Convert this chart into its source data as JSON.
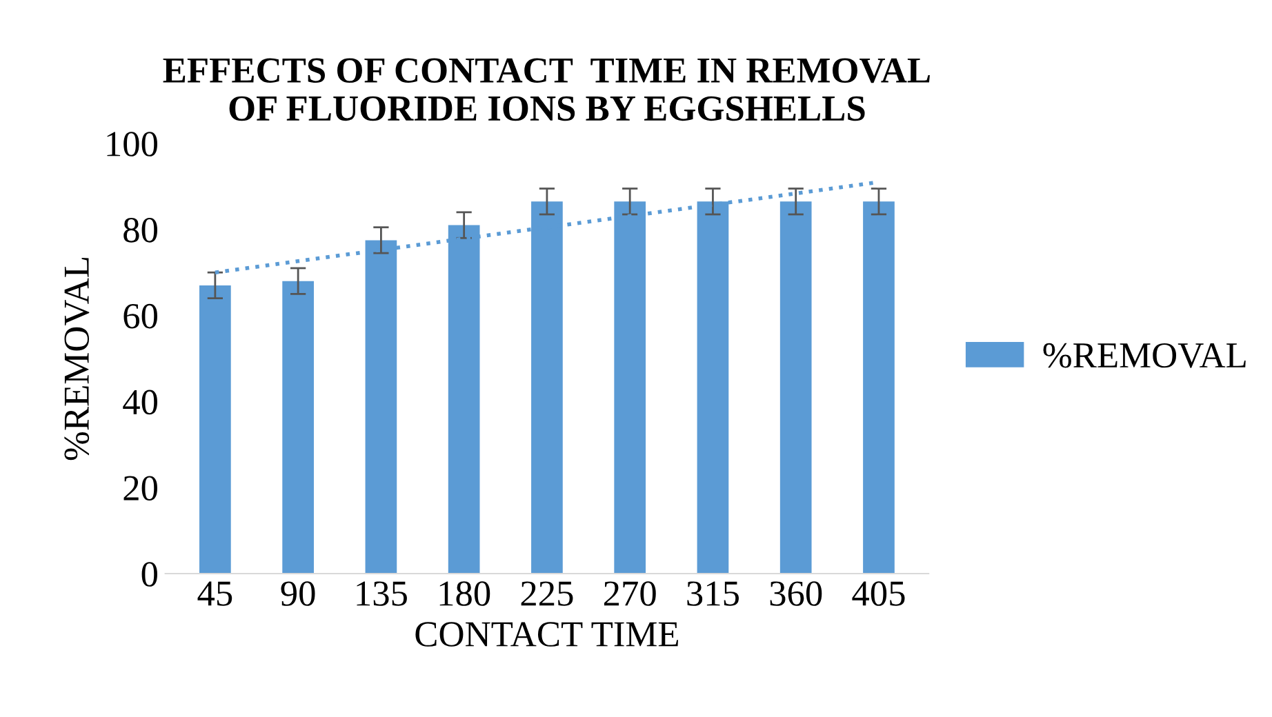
{
  "chart_data": {
    "type": "bar",
    "title": "EFFECTS OF CONTACT  TIME IN REMOVAL\nOF FLUORIDE IONS BY EGGSHELLS",
    "xlabel": "CONTACT TIME",
    "ylabel": "%REMOVAL",
    "categories": [
      "45",
      "90",
      "135",
      "180",
      "225",
      "270",
      "315",
      "360",
      "405"
    ],
    "series": [
      {
        "name": "%REMOVAL",
        "color": "#5b9bd5",
        "values": [
          67,
          68,
          77.5,
          81,
          86.5,
          86.5,
          86.5,
          86.5,
          86.5
        ],
        "errors": [
          3,
          3,
          3,
          3,
          3,
          3,
          3,
          3,
          3
        ]
      },
      {
        "type": "line",
        "color": "#5b9bd5",
        "x": [
          "45",
          "405"
        ],
        "values": [
          70,
          91
        ],
        "line_style": "dotted"
      }
    ],
    "ylim": [
      0,
      100
    ],
    "yticks": [
      0,
      20,
      40,
      60,
      80,
      100
    ],
    "legend": "right",
    "grid": false
  }
}
